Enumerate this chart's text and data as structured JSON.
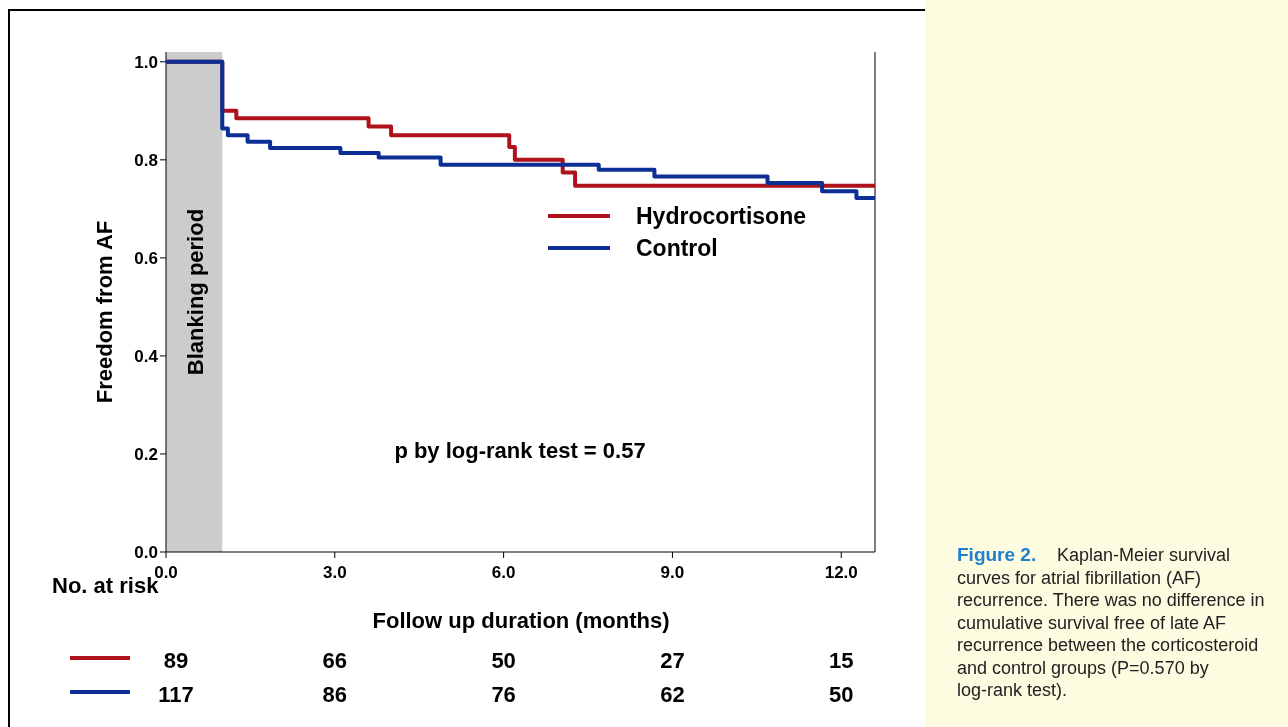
{
  "chart_data": {
    "type": "step",
    "xlabel": "Follow up duration (months)",
    "ylabel": "Freedom from AF",
    "xlim": [
      0,
      12.6
    ],
    "ylim": [
      0,
      1.02
    ],
    "xticks": [
      {
        "value": 0,
        "label": "0.0"
      },
      {
        "value": 3,
        "label": "3.0"
      },
      {
        "value": 6,
        "label": "6.0"
      },
      {
        "value": 9,
        "label": "9.0"
      },
      {
        "value": 12,
        "label": "12.0"
      }
    ],
    "yticks": [
      {
        "value": 0,
        "label": "0.0"
      },
      {
        "value": 0.2,
        "label": "0.2"
      },
      {
        "value": 0.4,
        "label": "0.4"
      },
      {
        "value": 0.6,
        "label": "0.6"
      },
      {
        "value": 0.8,
        "label": "0.8"
      },
      {
        "value": 1,
        "label": "1.0"
      }
    ],
    "series": [
      {
        "name": "Hydrocortisone",
        "color": "#b0121b",
        "x": [
          0,
          1.0,
          1.25,
          3.6,
          4.0,
          6.1,
          6.2,
          7.05,
          7.27,
          12.6
        ],
        "values": [
          1.0,
          0.9,
          0.885,
          0.868,
          0.85,
          0.826,
          0.8,
          0.774,
          0.747,
          0.747
        ]
      },
      {
        "name": "Control",
        "color": "#0c2f96",
        "x": [
          0,
          1.0,
          1.1,
          1.45,
          1.85,
          3.1,
          3.78,
          4.88,
          7.69,
          8.68,
          10.69,
          11.66,
          12.27,
          12.6
        ],
        "values": [
          1.0,
          0.864,
          0.85,
          0.837,
          0.824,
          0.814,
          0.805,
          0.79,
          0.78,
          0.766,
          0.753,
          0.736,
          0.722,
          0.722
        ]
      }
    ],
    "bands": [
      {
        "axis": "x",
        "from": 0,
        "to": 1,
        "label": "Blanking period",
        "color": "#cccccc"
      }
    ],
    "legend": "top right",
    "grid": false,
    "marker": "none",
    "line_style": "solid",
    "annotations": [
      "p by log-rank test = 0.57",
      "No. at risk",
      "89",
      "66",
      "50",
      "27",
      "15",
      "117",
      "86",
      "76",
      "62",
      "50",
      "Figure 2.",
      "Kaplan-Meier survival curves for atrial fibrillation (AF) recurrence. There was no difference in cumulative survival free of late AF recurrence between the corticosteroid and control groups (P=0.570 by log-rank test)."
    ]
  }
}
